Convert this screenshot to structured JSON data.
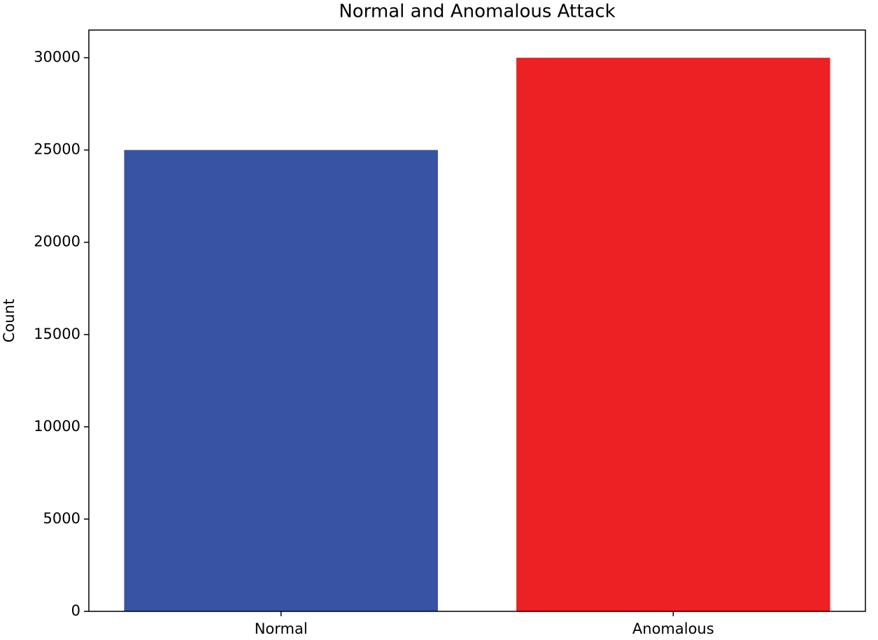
{
  "chart_data": {
    "type": "bar",
    "title": "Normal and Anomalous Attack",
    "ylabel": "Count",
    "categories": [
      "Normal",
      "Anomalous"
    ],
    "values": [
      25000,
      30000
    ],
    "colors": [
      "#3953a4",
      "#ed2024"
    ],
    "ylim": [
      0,
      31500
    ],
    "yticks": [
      0,
      5000,
      10000,
      15000,
      20000,
      25000,
      30000
    ],
    "grid": false
  }
}
